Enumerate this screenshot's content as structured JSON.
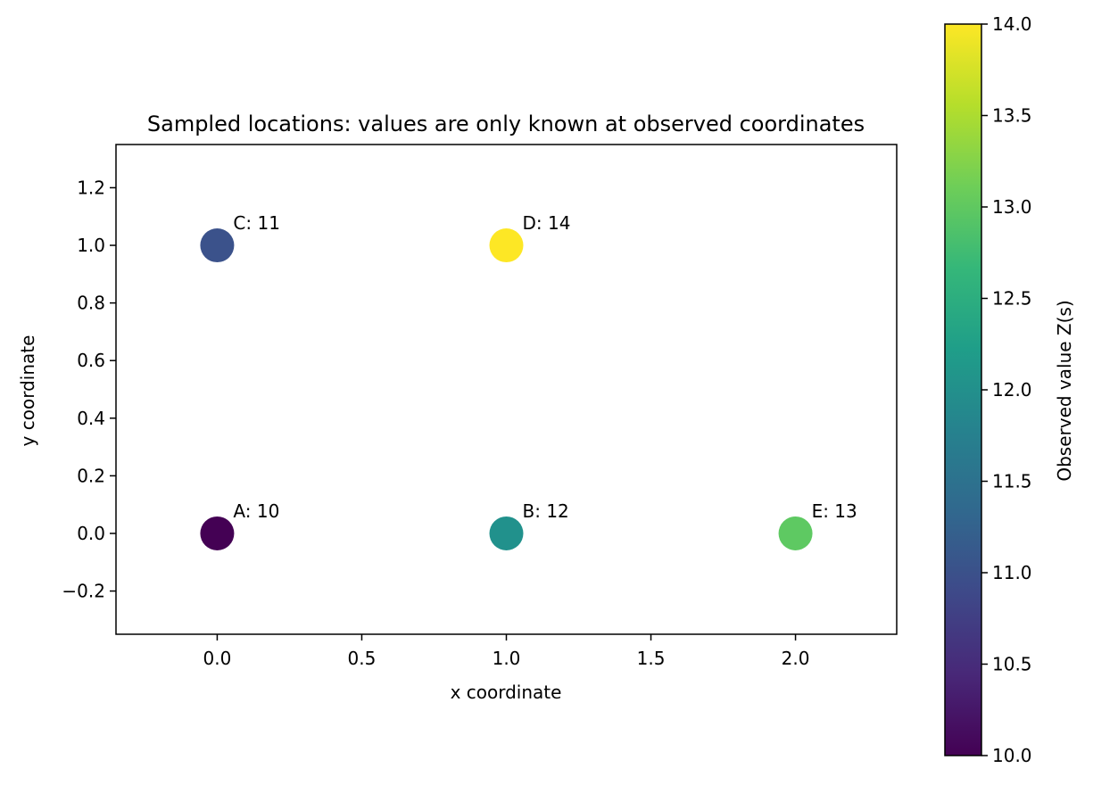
{
  "chart_data": {
    "type": "scatter",
    "title": "Sampled locations: values are only known at observed coordinates",
    "xlabel": "x coordinate",
    "ylabel": "y coordinate",
    "xlim": [
      -0.35,
      2.35
    ],
    "ylim": [
      -0.35,
      1.35
    ],
    "x_ticks": [
      0.0,
      0.5,
      1.0,
      1.5,
      2.0
    ],
    "x_tick_labels": [
      "0.0",
      "0.5",
      "1.0",
      "1.5",
      "2.0"
    ],
    "y_ticks": [
      -0.2,
      0.0,
      0.2,
      0.4,
      0.6,
      0.8,
      1.0,
      1.2
    ],
    "y_tick_labels": [
      "−0.2",
      "0.0",
      "0.2",
      "0.4",
      "0.6",
      "0.8",
      "1.0",
      "1.2"
    ],
    "grid": false,
    "points": [
      {
        "label": "A: 10",
        "x": 0,
        "y": 0,
        "value": 10,
        "color": "#440154"
      },
      {
        "label": "B: 12",
        "x": 1,
        "y": 0,
        "value": 12,
        "color": "#21918c"
      },
      {
        "label": "C: 11",
        "x": 0,
        "y": 1,
        "value": 11,
        "color": "#3b528b"
      },
      {
        "label": "D: 14",
        "x": 1,
        "y": 1,
        "value": 14,
        "color": "#fde725"
      },
      {
        "label": "E: 13",
        "x": 2,
        "y": 0,
        "value": 13,
        "color": "#5ec962"
      }
    ],
    "colorbar": {
      "label": "Observed value Z(s)",
      "colormap": "viridis",
      "range": [
        10.0,
        14.0
      ],
      "ticks": [
        10.0,
        10.5,
        11.0,
        11.5,
        12.0,
        12.5,
        13.0,
        13.5,
        14.0
      ],
      "tick_labels": [
        "10.0",
        "10.5",
        "11.0",
        "11.5",
        "12.0",
        "12.5",
        "13.0",
        "13.5",
        "14.0"
      ],
      "colors": [
        "#440154",
        "#482878",
        "#3e4989",
        "#31688e",
        "#26828e",
        "#1f9e89",
        "#35b779",
        "#6ece58",
        "#b5de2b",
        "#fde725"
      ]
    }
  }
}
